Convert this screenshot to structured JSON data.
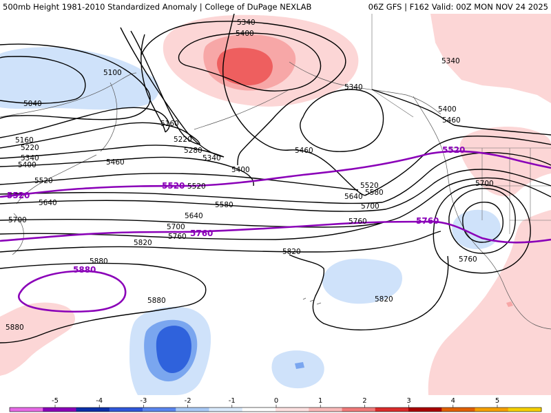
{
  "header": {
    "title_left": "500mb Height 1981-2010 Standardized Anomaly | College of DuPage NEXLAB",
    "title_right": "06Z GFS | F162 Valid: 00Z MON NOV 24 2025"
  },
  "contour_labels": {
    "l5340_top": "5340",
    "l5400_top": "5400",
    "l5340_ne": "5340",
    "l5340_mid": "5340",
    "l5100": "5100",
    "l5040": "5040",
    "l5160_w": "5160",
    "l5220_w": "5220",
    "l5340_w": "5340",
    "l5400_w": "5400",
    "l5160_c": "5160",
    "l5220_c": "5220",
    "l5280_c": "5280",
    "l5340_c": "5340",
    "l5400_c": "5400",
    "l5460_c": "5460",
    "l5460_mid": "5460",
    "l5400_e": "5400",
    "l5460_e": "5460",
    "l5520_e": "5520",
    "l5580_e": "5580",
    "l5640_e": "5640",
    "l5700_e": "5700",
    "l5700_low": "5700",
    "l5760_low": "5760",
    "l5520_mid": "5520",
    "l5580_mid": "5580",
    "l5640_w": "5640",
    "l5640_mid": "5640",
    "l5700_w": "5700",
    "l5700_mid": "5700",
    "l5760_mid": "5760",
    "l5760_e": "5760",
    "l5820_w": "5820",
    "l5820_mid": "5820",
    "l5820_s": "5820",
    "l5880_w": "5880",
    "l5880_c": "5880",
    "l5880_sw": "5880",
    "l5520_w": "5520"
  },
  "highlight_labels": {
    "p5520_w": "5520",
    "p5520_c": "5520",
    "p5520_e": "5520",
    "p5760_c": "5760",
    "p5760_e": "5760",
    "p5880": "5880"
  },
  "legend": {
    "ticks": [
      "-5",
      "-4",
      "-3",
      "-2",
      "-1",
      "0",
      "1",
      "2",
      "3",
      "4",
      "5"
    ],
    "colors": [
      "#e66ae6",
      "#8a00b8",
      "#0a2fa8",
      "#2f57d9",
      "#5a85ee",
      "#a8c9f5",
      "#d9e9fb",
      "#ffffff",
      "#fde0e0",
      "#f9b9b9",
      "#f07a7a",
      "#d92b2b",
      "#a80000",
      "#e06000",
      "#f5a000",
      "#f5d000"
    ]
  },
  "colors": {
    "positive_light": "#fcd6d6",
    "positive_mid": "#f7a7a7",
    "positive_strong": "#ee5f5f",
    "negative_light": "#cfe2fa",
    "negative_mid": "#7aa6ef",
    "negative_strong": "#2f62dc",
    "highlight_contour": "#8a00b8",
    "contour": "#000000"
  }
}
